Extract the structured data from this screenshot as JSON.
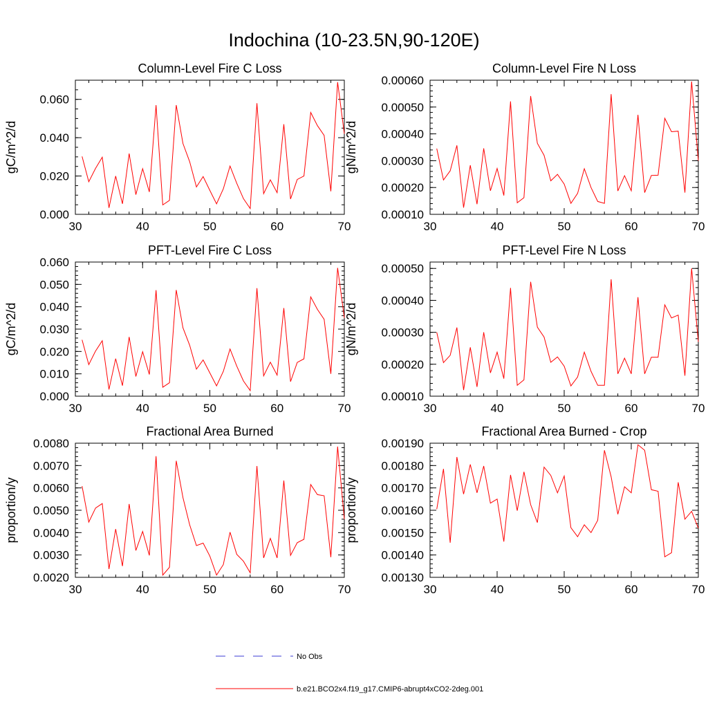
{
  "figure": {
    "title": "Indochina (10-23.5N,90-120E)",
    "line_color": "#ff0000",
    "obs_color": "#3b3bd6"
  },
  "legend": {
    "items": [
      {
        "label": "No Obs",
        "style": "dashed",
        "color": "#3b3bd6"
      },
      {
        "label": "b.e21.BCO2x4.f19_g17.CMIP6-abrupt4xCO2-2deg.001",
        "style": "solid",
        "color": "#ff0000"
      }
    ]
  },
  "chart_data": [
    {
      "type": "line",
      "title": "Column-Level Fire C Loss",
      "ylabel": "gC/m^2/d",
      "xlim": [
        30,
        70
      ],
      "ylim": [
        0,
        0.07
      ],
      "xticks": [
        30,
        40,
        50,
        60,
        70
      ],
      "xtick_labels": [
        "30",
        "40",
        "50",
        "60",
        "70"
      ],
      "yticks": [
        0,
        0.02,
        0.04,
        0.06
      ],
      "ytick_labels": [
        "0.000",
        "0.020",
        "0.040",
        "0.060"
      ],
      "yminor": 0.005,
      "x": [
        31,
        32,
        33,
        34,
        35,
        36,
        37,
        38,
        39,
        40,
        41,
        42,
        43,
        44,
        45,
        46,
        47,
        48,
        49,
        50,
        51,
        52,
        53,
        54,
        55,
        56,
        57,
        58,
        59,
        60,
        61,
        62,
        63,
        64,
        65,
        66,
        67,
        68,
        69,
        70
      ],
      "values": [
        0.0302,
        0.017,
        0.024,
        0.0298,
        0.0034,
        0.02,
        0.0055,
        0.0317,
        0.0103,
        0.0238,
        0.0117,
        0.057,
        0.0049,
        0.0073,
        0.057,
        0.037,
        0.0275,
        0.0143,
        0.0197,
        0.0125,
        0.0055,
        0.0133,
        0.0252,
        0.0162,
        0.0082,
        0.003,
        0.058,
        0.0108,
        0.018,
        0.0113,
        0.047,
        0.008,
        0.0182,
        0.02,
        0.0532,
        0.0463,
        0.0412,
        0.012,
        0.069,
        0.042
      ]
    },
    {
      "type": "line",
      "title": "Column-Level Fire N Loss",
      "ylabel": "gN/m^2/d",
      "xlim": [
        30,
        70
      ],
      "ylim": [
        0.0001,
        0.0006
      ],
      "xticks": [
        30,
        40,
        50,
        60,
        70
      ],
      "xtick_labels": [
        "30",
        "40",
        "50",
        "60",
        "70"
      ],
      "yticks": [
        0.0001,
        0.0002,
        0.0003,
        0.0004,
        0.0005,
        0.0006
      ],
      "ytick_labels": [
        "0.00010",
        "0.00020",
        "0.00030",
        "0.00040",
        "0.00050",
        "0.00060"
      ],
      "yminor": 2e-05,
      "x": [
        31,
        32,
        33,
        34,
        35,
        36,
        37,
        38,
        39,
        40,
        41,
        42,
        43,
        44,
        45,
        46,
        47,
        48,
        49,
        50,
        51,
        52,
        53,
        54,
        55,
        56,
        57,
        58,
        59,
        60,
        61,
        62,
        63,
        64,
        65,
        66,
        67,
        68,
        69,
        70
      ],
      "values": [
        0.000345,
        0.000228,
        0.000262,
        0.000357,
        0.000125,
        0.000283,
        0.000138,
        0.000346,
        0.000188,
        0.000271,
        0.00017,
        0.000521,
        0.000143,
        0.000162,
        0.000541,
        0.000365,
        0.00032,
        0.000225,
        0.000249,
        0.000213,
        0.000141,
        0.000178,
        0.00027,
        0.0002,
        0.000148,
        0.000141,
        0.000548,
        0.000187,
        0.000244,
        0.000188,
        0.000471,
        0.000181,
        0.000245,
        0.000246,
        0.000458,
        0.000408,
        0.00041,
        0.000181,
        0.000595,
        0.0003
      ]
    },
    {
      "type": "line",
      "title": "PFT-Level Fire C Loss",
      "ylabel": "gC/m^2/d",
      "xlim": [
        30,
        70
      ],
      "ylim": [
        0,
        0.06
      ],
      "xticks": [
        30,
        40,
        50,
        60,
        70
      ],
      "xtick_labels": [
        "30",
        "40",
        "50",
        "60",
        "70"
      ],
      "yticks": [
        0,
        0.01,
        0.02,
        0.03,
        0.04,
        0.05,
        0.06
      ],
      "ytick_labels": [
        "0.000",
        "0.010",
        "0.020",
        "0.030",
        "0.040",
        "0.050",
        "0.060"
      ],
      "yminor": 0.002,
      "x": [
        31,
        32,
        33,
        34,
        35,
        36,
        37,
        38,
        39,
        40,
        41,
        42,
        43,
        44,
        45,
        46,
        47,
        48,
        49,
        50,
        51,
        52,
        53,
        54,
        55,
        56,
        57,
        58,
        59,
        60,
        61,
        62,
        63,
        64,
        65,
        66,
        67,
        68,
        69,
        70
      ],
      "values": [
        0.0252,
        0.0141,
        0.0202,
        0.0248,
        0.003,
        0.0168,
        0.0047,
        0.0265,
        0.0088,
        0.0199,
        0.0097,
        0.0474,
        0.004,
        0.006,
        0.0475,
        0.0306,
        0.0228,
        0.0121,
        0.0162,
        0.0104,
        0.0046,
        0.0111,
        0.0211,
        0.0135,
        0.0068,
        0.0025,
        0.0483,
        0.0091,
        0.0152,
        0.0094,
        0.0394,
        0.0065,
        0.0151,
        0.0167,
        0.0444,
        0.0388,
        0.0344,
        0.01,
        0.0574,
        0.035
      ]
    },
    {
      "type": "line",
      "title": "PFT-Level Fire N Loss",
      "ylabel": "gN/m^2/d",
      "xlim": [
        30,
        70
      ],
      "ylim": [
        0.0001,
        0.00052
      ],
      "xticks": [
        30,
        40,
        50,
        60,
        70
      ],
      "xtick_labels": [
        "30",
        "40",
        "50",
        "60",
        "70"
      ],
      "yticks": [
        0.0001,
        0.0002,
        0.0003,
        0.0004,
        0.0005
      ],
      "ytick_labels": [
        "0.00010",
        "0.00020",
        "0.00030",
        "0.00040",
        "0.00050"
      ],
      "yminor": 2e-05,
      "x": [
        31,
        32,
        33,
        34,
        35,
        36,
        37,
        38,
        39,
        40,
        41,
        42,
        43,
        44,
        45,
        46,
        47,
        48,
        49,
        50,
        51,
        52,
        53,
        54,
        55,
        56,
        57,
        58,
        59,
        60,
        61,
        62,
        63,
        64,
        65,
        66,
        67,
        68,
        69,
        70
      ],
      "values": [
        0.0003,
        0.000205,
        0.000228,
        0.000315,
        0.000119,
        0.000253,
        0.000129,
        0.0003,
        0.000173,
        0.000238,
        0.000155,
        0.000439,
        0.000134,
        0.000151,
        0.000458,
        0.000316,
        0.000285,
        0.000206,
        0.000223,
        0.000194,
        0.000132,
        0.00016,
        0.000238,
        0.000178,
        0.000134,
        0.000134,
        0.000466,
        0.00017,
        0.000219,
        0.00017,
        0.00041,
        0.00017,
        0.000222,
        0.000222,
        0.000386,
        0.000345,
        0.000354,
        0.000164,
        0.0005,
        0.00027
      ]
    },
    {
      "type": "line",
      "title": "Fractional Area Burned",
      "ylabel": "proportion/y",
      "xlim": [
        30,
        70
      ],
      "ylim": [
        0.002,
        0.008
      ],
      "xticks": [
        30,
        40,
        50,
        60,
        70
      ],
      "xtick_labels": [
        "30",
        "40",
        "50",
        "60",
        "70"
      ],
      "yticks": [
        0.002,
        0.003,
        0.004,
        0.005,
        0.006,
        0.007,
        0.008
      ],
      "ytick_labels": [
        "0.0020",
        "0.0030",
        "0.0040",
        "0.0050",
        "0.0060",
        "0.0070",
        "0.0080"
      ],
      "yminor": 0.0002,
      "x": [
        31,
        32,
        33,
        34,
        35,
        36,
        37,
        38,
        39,
        40,
        41,
        42,
        43,
        44,
        45,
        46,
        47,
        48,
        49,
        50,
        51,
        52,
        53,
        54,
        55,
        56,
        57,
        58,
        59,
        60,
        61,
        62,
        63,
        64,
        65,
        66,
        67,
        68,
        69,
        70
      ],
      "values": [
        0.00608,
        0.00447,
        0.0051,
        0.0053,
        0.00237,
        0.00416,
        0.0025,
        0.00528,
        0.0032,
        0.00405,
        0.00298,
        0.00742,
        0.0021,
        0.00245,
        0.00721,
        0.00557,
        0.00435,
        0.00342,
        0.00353,
        0.00295,
        0.0021,
        0.00257,
        0.00402,
        0.00303,
        0.00272,
        0.0022,
        0.00698,
        0.00287,
        0.00374,
        0.00287,
        0.00633,
        0.00298,
        0.00355,
        0.0037,
        0.00615,
        0.0057,
        0.00565,
        0.0029,
        0.00785,
        0.0046
      ]
    },
    {
      "type": "line",
      "title": "Fractional Area Burned - Crop",
      "ylabel": "proportion/y",
      "xlim": [
        30,
        70
      ],
      "ylim": [
        0.0013,
        0.0019
      ],
      "xticks": [
        30,
        40,
        50,
        60,
        70
      ],
      "xtick_labels": [
        "30",
        "40",
        "50",
        "60",
        "70"
      ],
      "yticks": [
        0.0013,
        0.0014,
        0.0015,
        0.0016,
        0.0017,
        0.0018,
        0.0019
      ],
      "ytick_labels": [
        "0.00130",
        "0.00140",
        "0.00150",
        "0.00160",
        "0.00170",
        "0.00180",
        "0.00190"
      ],
      "yminor": 2e-05,
      "x": [
        31,
        32,
        33,
        34,
        35,
        36,
        37,
        38,
        39,
        40,
        41,
        42,
        43,
        44,
        45,
        46,
        47,
        48,
        49,
        50,
        51,
        52,
        53,
        54,
        55,
        56,
        57,
        58,
        59,
        60,
        61,
        62,
        63,
        64,
        65,
        66,
        67,
        68,
        69,
        70
      ],
      "values": [
        0.001605,
        0.001785,
        0.001455,
        0.001838,
        0.001672,
        0.001805,
        0.001678,
        0.001798,
        0.001632,
        0.00165,
        0.00146,
        0.001758,
        0.001598,
        0.001772,
        0.001625,
        0.001545,
        0.001793,
        0.001756,
        0.001678,
        0.001753,
        0.001522,
        0.001482,
        0.001535,
        0.0015,
        0.001555,
        0.001868,
        0.00175,
        0.001582,
        0.001705,
        0.001678,
        0.001893,
        0.001868,
        0.001692,
        0.001685,
        0.001392,
        0.00141,
        0.001725,
        0.00156,
        0.001595,
        0.00152
      ]
    }
  ]
}
